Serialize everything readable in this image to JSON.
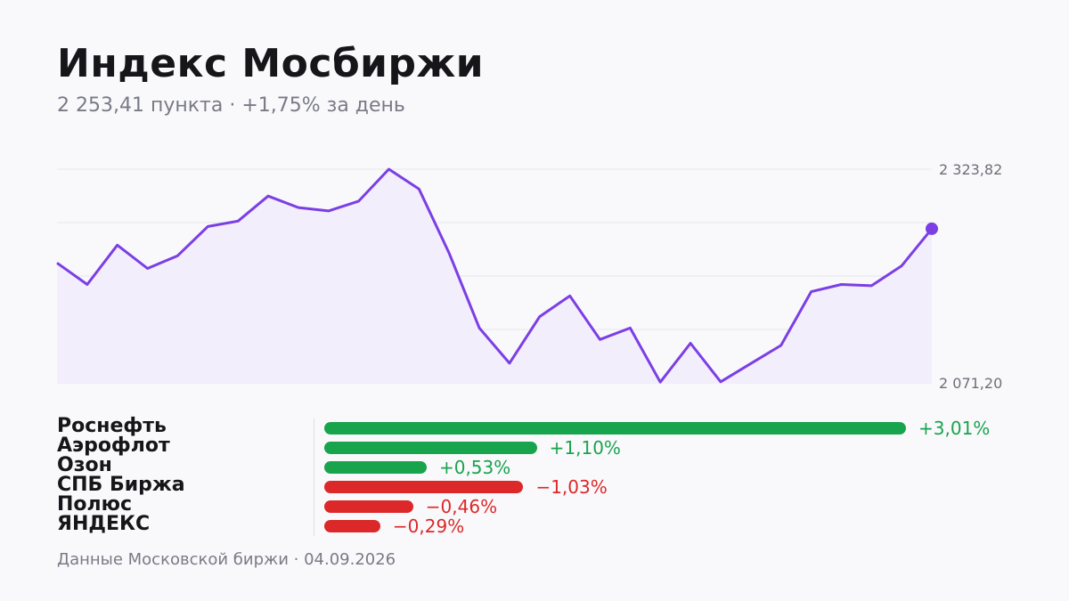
{
  "header": {
    "title": "Индекс Мосбиржи",
    "subtitle": "2 253,41 пункта · +1,75% за день"
  },
  "chart_data": {
    "type": "area",
    "title": "Индекс Мосбиржи",
    "y_tick_labels": [
      "2 323,82",
      "2 071,20"
    ],
    "ylim": [
      2071.2,
      2323.82
    ],
    "grid": true,
    "colors": {
      "line": "#7b3fe4",
      "fill": "#f3eefc",
      "grid": "#e6e6ec"
    },
    "values": [
      2213.0,
      2187.5,
      2234.0,
      2206.5,
      2221.5,
      2256.0,
      2262.5,
      2292.0,
      2278.5,
      2274.5,
      2286.0,
      2323.8,
      2300.5,
      2224.5,
      2136.0,
      2094.5,
      2149.5,
      2174.0,
      2122.5,
      2136.0,
      2072.0,
      2118.0,
      2072.5,
      2094.0,
      2115.5,
      2179.0,
      2187.5,
      2186.0,
      2209.5,
      2253.4
    ]
  },
  "movers": {
    "items": [
      {
        "name": "Роснефть",
        "value": 3.01,
        "label": "+3,01%"
      },
      {
        "name": "Аэрофлот",
        "value": 1.1,
        "label": "+1,10%"
      },
      {
        "name": "Озон",
        "value": 0.53,
        "label": "+0,53%"
      },
      {
        "name": "СПБ Биржа",
        "value": -1.03,
        "label": "−1,03%"
      },
      {
        "name": "Полюс",
        "value": -0.46,
        "label": "−0,46%"
      },
      {
        "name": "ЯНДЕКС",
        "value": -0.29,
        "label": "−0,29%"
      }
    ],
    "colors": {
      "up": "#18a44c",
      "down": "#dc2828"
    }
  },
  "footer": {
    "source": "Данные Московской биржи · 04.09.2026"
  }
}
